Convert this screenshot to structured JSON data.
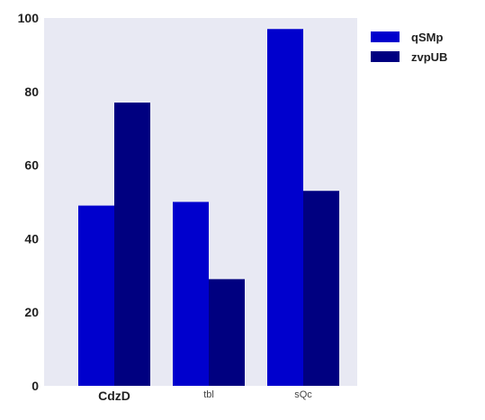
{
  "chart_data": {
    "type": "bar",
    "categories": [
      "CdzD",
      "tbl",
      "sQc"
    ],
    "category_label_bold": [
      true,
      false,
      false
    ],
    "series": [
      {
        "name": "qSMp",
        "color": "#0000CD",
        "values": [
          49,
          50,
          97
        ]
      },
      {
        "name": "zvpUB",
        "color": "#000080",
        "values": [
          77,
          29,
          53
        ]
      }
    ],
    "y_ticks": [
      0,
      20,
      40,
      60,
      80,
      100
    ],
    "ylim": [
      0,
      100
    ],
    "title": "",
    "xlabel": "",
    "ylabel": "",
    "grid": false,
    "legend_position": "top-right, outside plot",
    "colors": {
      "plot_background": "#E8E9F3"
    }
  }
}
